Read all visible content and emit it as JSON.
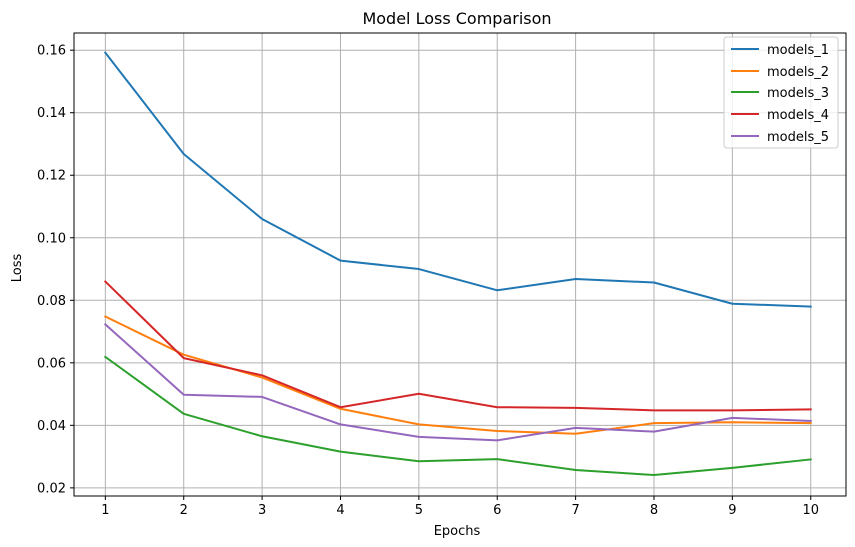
{
  "chart_data": {
    "type": "line",
    "title": "Model Loss Comparison",
    "xlabel": "Epochs",
    "ylabel": "Loss",
    "x": [
      1,
      2,
      3,
      4,
      5,
      6,
      7,
      8,
      9,
      10
    ],
    "xlim": [
      0.6,
      10.45
    ],
    "ylim": [
      0.0174,
      0.1655
    ],
    "yticks": [
      0.02,
      0.04,
      0.06,
      0.08,
      0.1,
      0.12,
      0.14,
      0.16
    ],
    "ytick_labels": [
      "0.02",
      "0.04",
      "0.06",
      "0.08",
      "0.10",
      "0.12",
      "0.14",
      "0.16"
    ],
    "xtick_labels": [
      "1",
      "2",
      "3",
      "4",
      "5",
      "6",
      "7",
      "8",
      "9",
      "10"
    ],
    "grid": true,
    "legend_position": "top-right",
    "series": [
      {
        "name": "models_1",
        "color": "#1f77b4",
        "values": [
          0.1592,
          0.1268,
          0.106,
          0.0927,
          0.09,
          0.0832,
          0.0868,
          0.0857,
          0.0789,
          0.078
        ]
      },
      {
        "name": "models_2",
        "color": "#ff7f0e",
        "values": [
          0.0748,
          0.0626,
          0.0553,
          0.0453,
          0.0403,
          0.0382,
          0.0373,
          0.0407,
          0.041,
          0.0407
        ]
      },
      {
        "name": "models_3",
        "color": "#2ca02c",
        "values": [
          0.0619,
          0.0437,
          0.0365,
          0.0316,
          0.0285,
          0.0292,
          0.0257,
          0.0241,
          0.0264,
          0.0291
        ]
      },
      {
        "name": "models_4",
        "color": "#d62728",
        "values": [
          0.086,
          0.0615,
          0.056,
          0.0458,
          0.0501,
          0.0458,
          0.0456,
          0.0448,
          0.0448,
          0.0451
        ]
      },
      {
        "name": "models_5",
        "color": "#9467bd",
        "values": [
          0.0723,
          0.0498,
          0.0491,
          0.0403,
          0.0363,
          0.0352,
          0.0392,
          0.038,
          0.0424,
          0.0414
        ]
      }
    ]
  }
}
